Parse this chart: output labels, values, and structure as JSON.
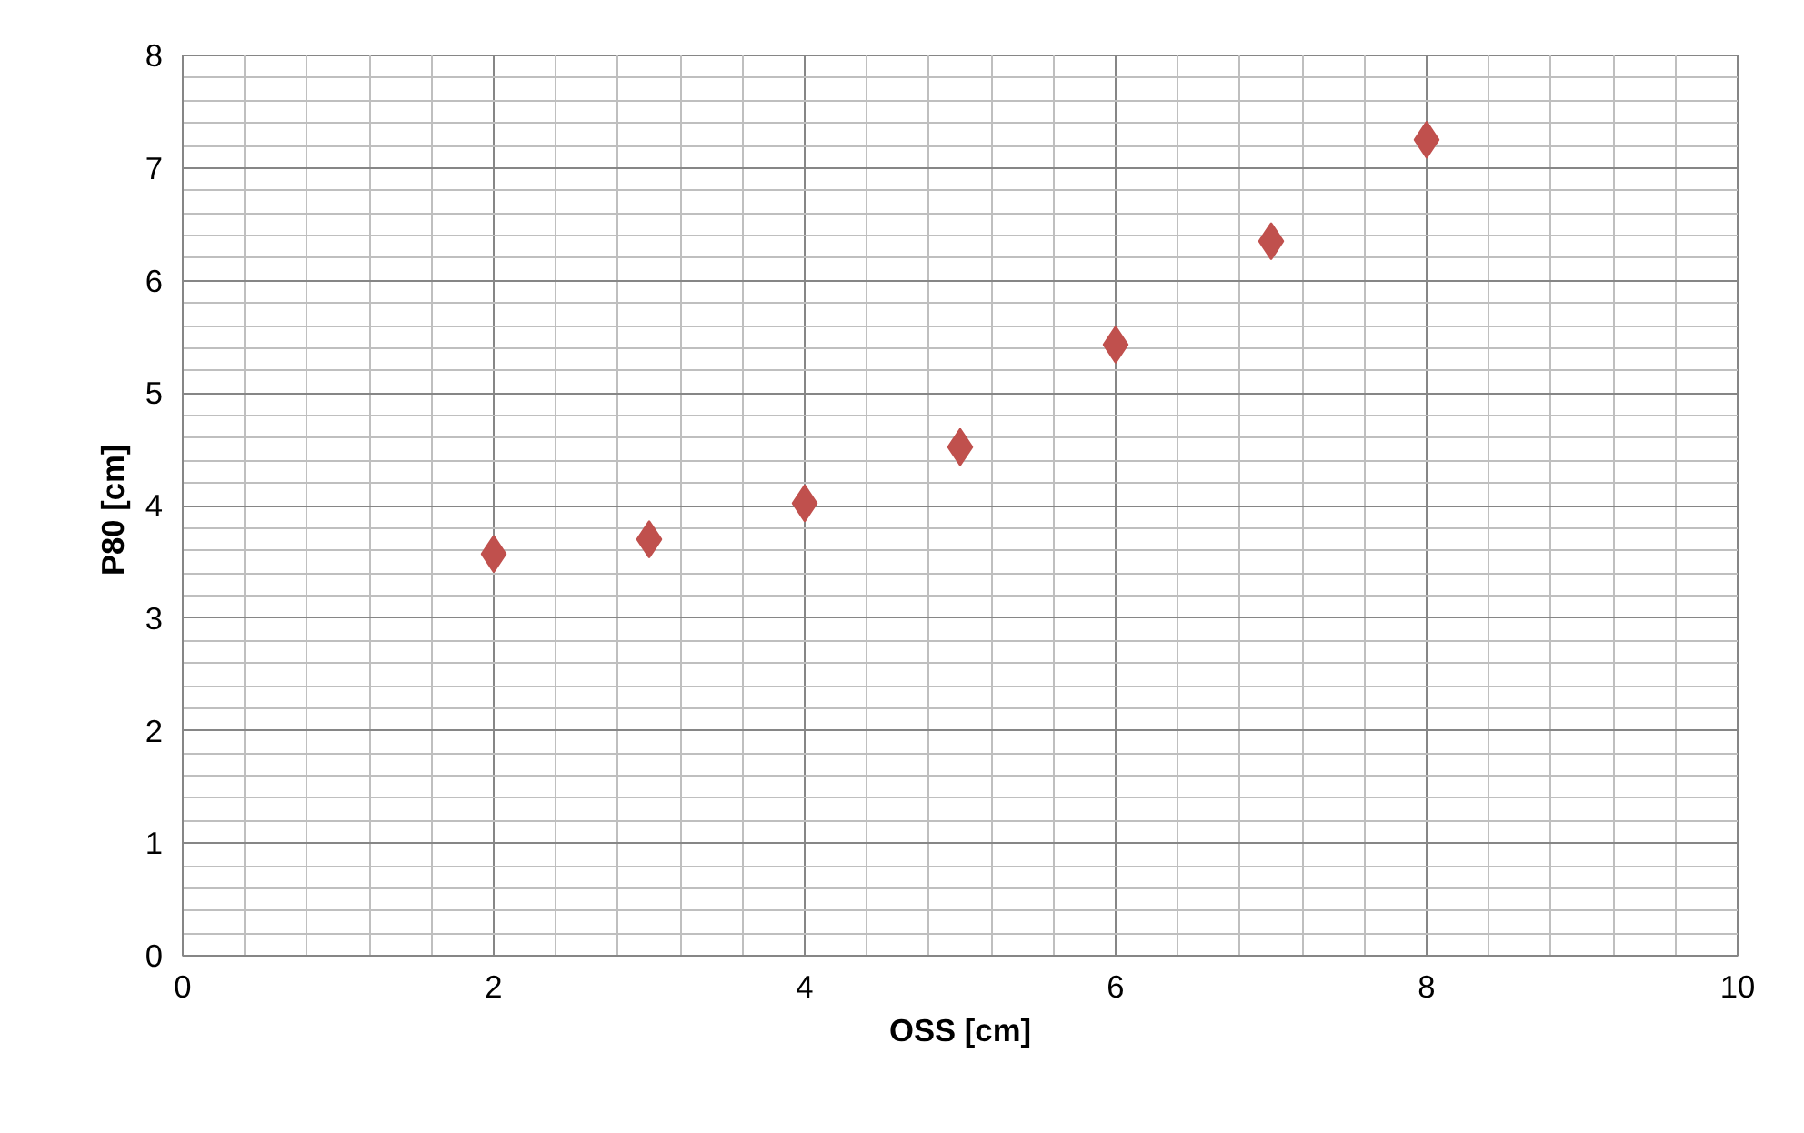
{
  "chart_data": {
    "type": "scatter",
    "xlabel": "OSS [cm]",
    "ylabel": "P80  [cm]",
    "x": [
      2,
      3,
      4,
      5,
      6,
      7,
      8
    ],
    "series": [
      {
        "color": "#c0504d",
        "values": [
          3.57,
          3.7,
          4.02,
          4.52,
          5.43,
          6.35,
          7.25
        ]
      }
    ],
    "xlim": [
      0,
      10
    ],
    "ylim": [
      0,
      8
    ],
    "xticks": [
      0,
      2,
      4,
      6,
      8,
      10
    ],
    "yticks": [
      0,
      1,
      2,
      3,
      4,
      5,
      6,
      7,
      8
    ],
    "grid": true,
    "marker": "diamond"
  }
}
